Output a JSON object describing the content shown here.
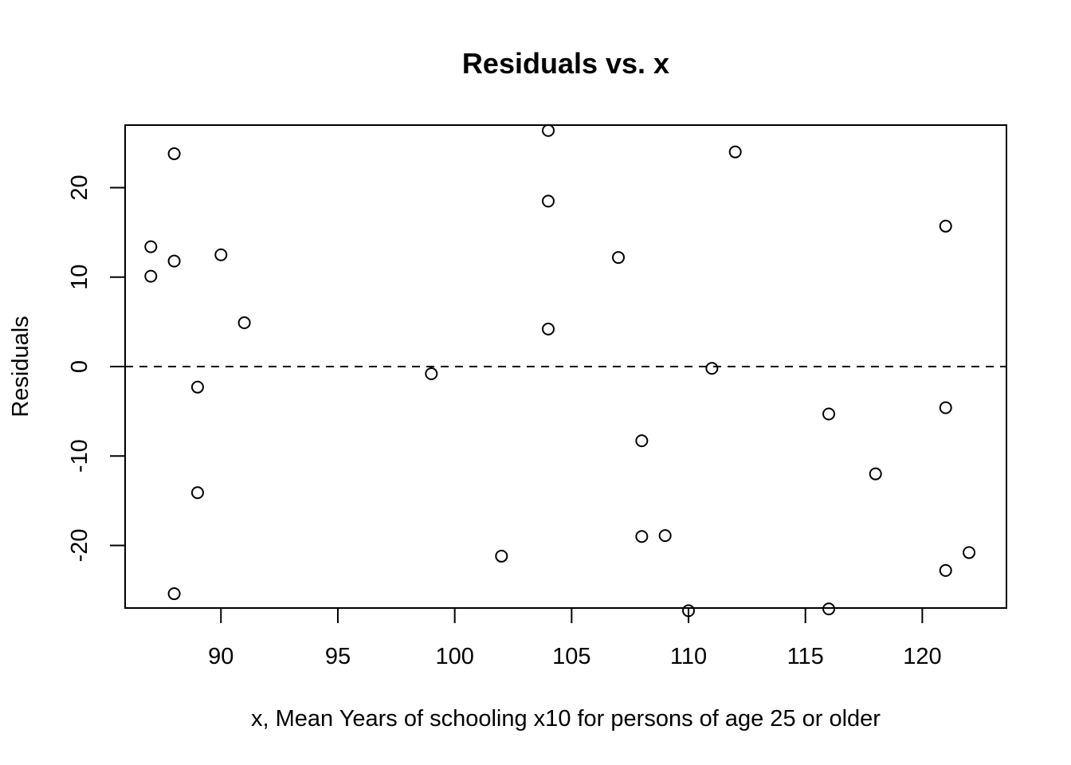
{
  "chart_data": {
    "type": "scatter",
    "title": "Residuals vs. x",
    "xlabel": "x, Mean Years of schooling x10 for persons of age 25 or older",
    "ylabel": "Residuals",
    "xlim": [
      85.9,
      123.6
    ],
    "ylim": [
      -27,
      27
    ],
    "xticks": [
      90,
      95,
      100,
      105,
      110,
      115,
      120
    ],
    "xtick_labels": [
      "90",
      "95",
      "100",
      "105",
      "110",
      "115",
      "120"
    ],
    "yticks": [
      -20,
      -10,
      0,
      10,
      20
    ],
    "ytick_labels": [
      "-20",
      "-10",
      "0",
      "10",
      "20"
    ],
    "reference_line": {
      "y": 0,
      "style": "dashed"
    },
    "grid": false,
    "marker": "open-circle",
    "points": [
      {
        "x": 87,
        "y": 13.4
      },
      {
        "x": 87,
        "y": 10.1
      },
      {
        "x": 88,
        "y": 23.8
      },
      {
        "x": 88,
        "y": 11.8
      },
      {
        "x": 88,
        "y": -25.4
      },
      {
        "x": 89,
        "y": -2.3
      },
      {
        "x": 89,
        "y": -14.1
      },
      {
        "x": 90,
        "y": 12.5
      },
      {
        "x": 91,
        "y": 4.9
      },
      {
        "x": 99,
        "y": -0.8
      },
      {
        "x": 102,
        "y": -21.2
      },
      {
        "x": 104,
        "y": 26.4
      },
      {
        "x": 104,
        "y": 18.5
      },
      {
        "x": 104,
        "y": 4.2
      },
      {
        "x": 107,
        "y": 12.2
      },
      {
        "x": 108,
        "y": -8.3
      },
      {
        "x": 108,
        "y": -19.0
      },
      {
        "x": 109,
        "y": -18.9
      },
      {
        "x": 110,
        "y": -27.3
      },
      {
        "x": 111,
        "y": -0.2
      },
      {
        "x": 112,
        "y": 24.0
      },
      {
        "x": 116,
        "y": -5.3
      },
      {
        "x": 116,
        "y": -27.1
      },
      {
        "x": 118,
        "y": -12.0
      },
      {
        "x": 121,
        "y": 15.7
      },
      {
        "x": 121,
        "y": -4.6
      },
      {
        "x": 121,
        "y": -22.8
      },
      {
        "x": 122,
        "y": -20.8
      }
    ]
  }
}
